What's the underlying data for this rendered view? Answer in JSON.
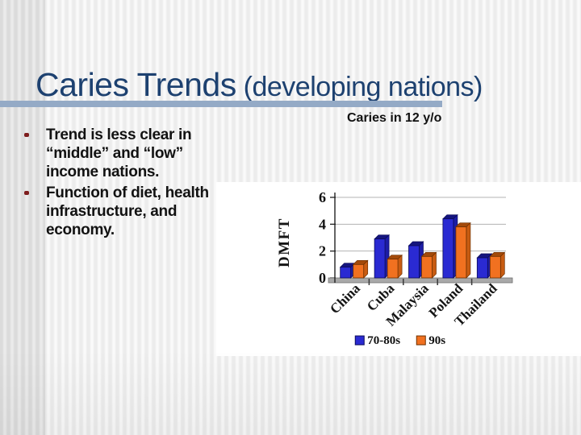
{
  "slide": {
    "title": {
      "main": "Caries Trends",
      "paren": " (developing nations)"
    },
    "bullets": [
      "Trend is less clear in “middle” and “low” income nations.",
      "Function of diet, health infrastructure, and economy."
    ]
  },
  "colors": {
    "title_navy": "#1d4170",
    "title_rule_blue": "#94aac6",
    "bullet_dot_maroon": "#7d1d1d",
    "body_text": "#121212",
    "chart_panel_bg": "#ffffff",
    "gridline_gray": "#b3b3b3",
    "floor_gray": "#a9a9a9",
    "axis_dark": "#222222"
  },
  "chart_data": {
    "type": "bar",
    "title": "Caries in 12 y/o",
    "ylabel": "DMFT",
    "xlabel": "",
    "categories": [
      "China",
      "Cuba",
      "Malaysia",
      "Poland",
      "Thailand"
    ],
    "series": [
      {
        "name": "70-80s",
        "values": [
          0.8,
          2.9,
          2.4,
          4.4,
          1.5
        ],
        "color": "#2a2ad2",
        "color_top": "#15157e",
        "color_side": "#1d1da6",
        "outline": "#0a0a5a"
      },
      {
        "name": "90s",
        "values": [
          1.0,
          1.4,
          1.6,
          3.8,
          1.6
        ],
        "color": "#f17120",
        "color_top": "#a34a0a",
        "color_side": "#c85c12",
        "outline": "#6e3000"
      }
    ],
    "ylim": [
      0,
      6
    ],
    "yticks": [
      0,
      2,
      4,
      6
    ],
    "grid": true,
    "legend_position": "bottom"
  }
}
